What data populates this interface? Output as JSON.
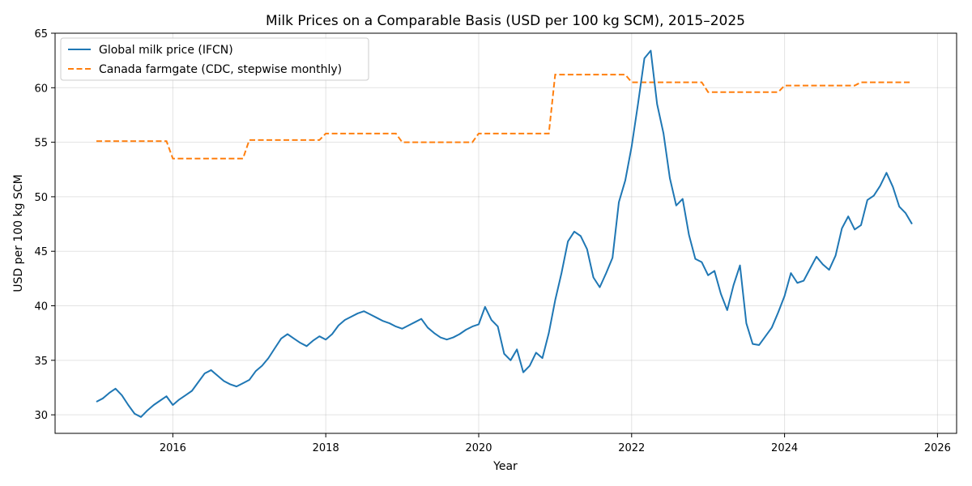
{
  "chart_data": {
    "type": "line",
    "title": "Milk Prices on a Comparable Basis (USD per 100 kg SCM), 2015–2025",
    "xlabel": "Year",
    "ylabel": "USD per 100 kg SCM",
    "xlim": [
      2014.46,
      2026.25
    ],
    "ylim": [
      28.3,
      65
    ],
    "x_ticks": [
      2016,
      2018,
      2020,
      2022,
      2024,
      2026
    ],
    "y_ticks": [
      30,
      35,
      40,
      45,
      50,
      55,
      60,
      65
    ],
    "grid": true,
    "legend_position": "top-left",
    "series": [
      {
        "name": "Global milk price (IFCN)",
        "color": "#1f77b4",
        "style": "solid",
        "x": [
          2015.0,
          2015.083,
          2015.167,
          2015.25,
          2015.333,
          2015.417,
          2015.5,
          2015.583,
          2015.667,
          2015.75,
          2015.833,
          2015.917,
          2016.0,
          2016.083,
          2016.167,
          2016.25,
          2016.333,
          2016.417,
          2016.5,
          2016.583,
          2016.667,
          2016.75,
          2016.833,
          2016.917,
          2017.0,
          2017.083,
          2017.167,
          2017.25,
          2017.333,
          2017.417,
          2017.5,
          2017.583,
          2017.667,
          2017.75,
          2017.833,
          2017.917,
          2018.0,
          2018.083,
          2018.167,
          2018.25,
          2018.333,
          2018.417,
          2018.5,
          2018.583,
          2018.667,
          2018.75,
          2018.833,
          2018.917,
          2019.0,
          2019.083,
          2019.167,
          2019.25,
          2019.333,
          2019.417,
          2019.5,
          2019.583,
          2019.667,
          2019.75,
          2019.833,
          2019.917,
          2020.0,
          2020.083,
          2020.167,
          2020.25,
          2020.333,
          2020.417,
          2020.5,
          2020.583,
          2020.667,
          2020.75,
          2020.833,
          2020.917,
          2021.0,
          2021.083,
          2021.167,
          2021.25,
          2021.333,
          2021.417,
          2021.5,
          2021.583,
          2021.667,
          2021.75,
          2021.833,
          2021.917,
          2022.0,
          2022.083,
          2022.167,
          2022.25,
          2022.333,
          2022.417,
          2022.5,
          2022.583,
          2022.667,
          2022.75,
          2022.833,
          2022.917,
          2023.0,
          2023.083,
          2023.167,
          2023.25,
          2023.333,
          2023.417,
          2023.5,
          2023.583,
          2023.667,
          2023.75,
          2023.833,
          2023.917,
          2024.0,
          2024.083,
          2024.167,
          2024.25,
          2024.333,
          2024.417,
          2024.5,
          2024.583,
          2024.667,
          2024.75,
          2024.833,
          2024.917,
          2025.0,
          2025.083,
          2025.167,
          2025.25,
          2025.333,
          2025.417,
          2025.5,
          2025.583,
          2025.667
        ],
        "y": [
          31.2,
          31.5,
          32.0,
          32.4,
          31.8,
          30.9,
          30.1,
          29.8,
          30.4,
          30.9,
          31.3,
          31.7,
          30.9,
          31.4,
          31.8,
          32.2,
          33.0,
          33.8,
          34.1,
          33.6,
          33.1,
          32.8,
          32.6,
          32.9,
          33.2,
          34.0,
          34.5,
          35.2,
          36.1,
          37.0,
          37.4,
          37.0,
          36.6,
          36.3,
          36.8,
          37.2,
          36.9,
          37.4,
          38.2,
          38.7,
          39.0,
          39.3,
          39.5,
          39.2,
          38.9,
          38.6,
          38.4,
          38.1,
          37.9,
          38.2,
          38.5,
          38.8,
          38.0,
          37.5,
          37.1,
          36.9,
          37.1,
          37.4,
          37.8,
          38.1,
          38.3,
          39.9,
          38.7,
          38.1,
          35.6,
          35.0,
          36.0,
          33.9,
          34.5,
          35.7,
          35.2,
          37.5,
          40.5,
          43.0,
          45.9,
          46.8,
          46.4,
          45.2,
          42.6,
          41.7,
          43.0,
          44.4,
          49.5,
          51.5,
          54.6,
          58.5,
          62.7,
          63.4,
          58.5,
          55.8,
          51.7,
          49.2,
          49.8,
          46.5,
          44.3,
          44.0,
          42.8,
          43.2,
          41.1,
          39.6,
          41.9,
          43.7,
          38.4,
          36.5,
          36.4,
          37.2,
          38.0,
          39.4,
          40.9,
          43.0,
          42.1,
          42.3,
          43.4,
          44.5,
          43.8,
          43.3,
          44.6,
          47.1,
          48.2,
          47.0,
          47.4,
          49.7,
          50.1,
          51.0,
          52.2,
          50.9,
          49.1,
          48.5,
          47.5
        ]
      },
      {
        "name": "Canada farmgate (CDC, stepwise monthly)",
        "color": "#ff7f0e",
        "style": "dashed",
        "steps": [
          {
            "start": 2015.0,
            "end": 2015.917,
            "value": 55.1
          },
          {
            "start": 2016.0,
            "end": 2016.917,
            "value": 53.5
          },
          {
            "start": 2017.0,
            "end": 2017.917,
            "value": 55.2
          },
          {
            "start": 2018.0,
            "end": 2018.917,
            "value": 55.8
          },
          {
            "start": 2019.0,
            "end": 2019.917,
            "value": 55.0
          },
          {
            "start": 2020.0,
            "end": 2020.917,
            "value": 55.8
          },
          {
            "start": 2021.0,
            "end": 2021.917,
            "value": 61.2
          },
          {
            "start": 2022.0,
            "end": 2022.917,
            "value": 60.5
          },
          {
            "start": 2023.0,
            "end": 2023.917,
            "value": 59.6
          },
          {
            "start": 2024.0,
            "end": 2024.917,
            "value": 60.2
          },
          {
            "start": 2025.0,
            "end": 2025.667,
            "value": 60.5
          }
        ]
      }
    ]
  }
}
